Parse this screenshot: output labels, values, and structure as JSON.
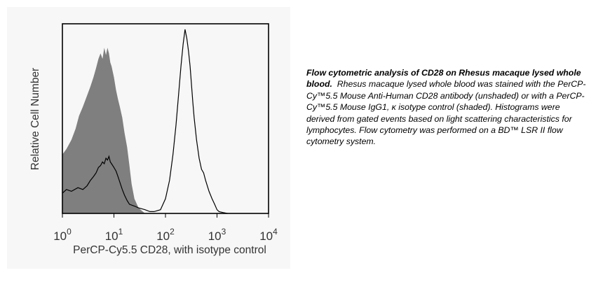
{
  "chart_data": {
    "type": "line",
    "xscale": "log",
    "xlim": [
      1,
      10000
    ],
    "xlabel": "PerCP-Cy5.5 CD28, with isotype control",
    "ylabel": "Relative Cell Number",
    "x_ticks": [
      {
        "value": 1,
        "base": "10",
        "exp": "0"
      },
      {
        "value": 10,
        "base": "10",
        "exp": "1"
      },
      {
        "value": 100,
        "base": "10",
        "exp": "2"
      },
      {
        "value": 1000,
        "base": "10",
        "exp": "3"
      },
      {
        "value": 10000,
        "base": "10",
        "exp": "4"
      }
    ],
    "ylim": [
      0,
      100
    ],
    "grid": false,
    "series": [
      {
        "style": "shaded",
        "fill": "#7f7f7f",
        "x": [
          1.0,
          1.2,
          1.5,
          1.8,
          2.1,
          2.5,
          3.0,
          3.5,
          4.0,
          4.5,
          5.0,
          5.5,
          6.0,
          6.5,
          7.0,
          7.5,
          8.0,
          8.5,
          9.0,
          10.0,
          11.0,
          12.0,
          13.0,
          14.5,
          16.0,
          18.0,
          20.0,
          22.0,
          25.0,
          30.0,
          40.0
        ],
        "values": [
          32,
          35,
          40,
          46,
          53,
          58,
          64,
          69,
          74,
          79,
          84,
          87,
          84,
          90,
          86,
          90,
          87,
          82,
          80,
          74,
          67,
          62,
          58,
          52,
          44,
          36,
          26,
          16,
          8,
          3,
          0
        ]
      },
      {
        "style": "unshaded",
        "stroke": "#000000",
        "x": [
          1.0,
          1.2,
          1.5,
          2.0,
          2.5,
          3.0,
          3.5,
          4.0,
          4.5,
          5.0,
          5.5,
          6.0,
          6.5,
          7.0,
          7.5,
          8.0,
          8.5,
          9.0,
          10.0,
          11.0,
          12.0,
          13.0,
          14.5,
          16.0,
          18.0,
          20.0,
          25.0,
          30.0,
          40.0,
          50.0,
          60.0,
          80.0,
          100.0,
          120.0,
          140.0,
          160.0,
          180.0,
          200.0,
          220.0,
          240.0,
          260.0,
          280.0,
          300.0,
          320.0,
          340.0,
          360.0,
          400.0,
          450.0,
          500.0,
          550.0,
          600.0,
          700.0,
          800.0,
          900.0,
          1000.0,
          1100.0,
          1300.0,
          1600.0
        ],
        "values": [
          11,
          13,
          12,
          14,
          13,
          15,
          18,
          20,
          22,
          25,
          26,
          28,
          27,
          30,
          29,
          31,
          28,
          27,
          25,
          23,
          20,
          17,
          13,
          10,
          7,
          5,
          4,
          3,
          2,
          1,
          1,
          2,
          8,
          18,
          32,
          48,
          65,
          80,
          92,
          100,
          95,
          88,
          80,
          70,
          60,
          52,
          40,
          30,
          24,
          22,
          18,
          12,
          8,
          5,
          2,
          1,
          0.5,
          0
        ]
      }
    ]
  },
  "caption": {
    "title": "Flow cytometric analysis of CD28 on Rhesus macaque lysed whole blood.",
    "body": "Rhesus macaque lysed whole blood was stained with the PerCP-Cy™5.5 Mouse Anti-Human CD28 antibody (unshaded) or with a PerCP-Cy™5.5 Mouse IgG1, κ isotype control (shaded).  Histograms were derived from gated events based on light scattering characteristics for lymphocytes. Flow cytometry was performed on a BD™ LSR II flow cytometry system."
  }
}
